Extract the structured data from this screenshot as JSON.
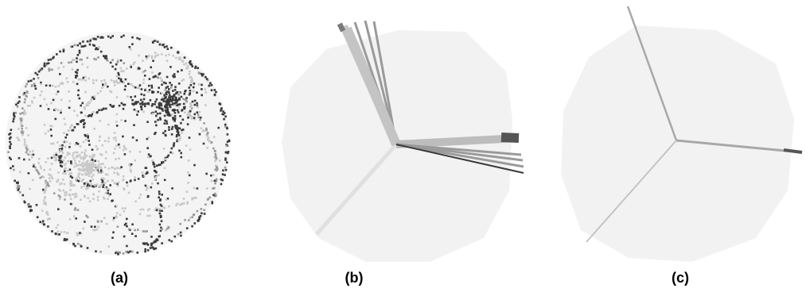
{
  "panels": [
    {
      "id": "a",
      "caption": "(a)",
      "kind": "scatter-sphere"
    },
    {
      "id": "b",
      "caption": "(b)",
      "kind": "ray-bundle"
    },
    {
      "id": "c",
      "caption": "(c)",
      "kind": "axis-rays"
    }
  ],
  "colors": {
    "sphere": "#f3f3f3",
    "dark": "#3a3a3a",
    "mid": "#9a9a9a",
    "light": "#c8c8c8"
  }
}
